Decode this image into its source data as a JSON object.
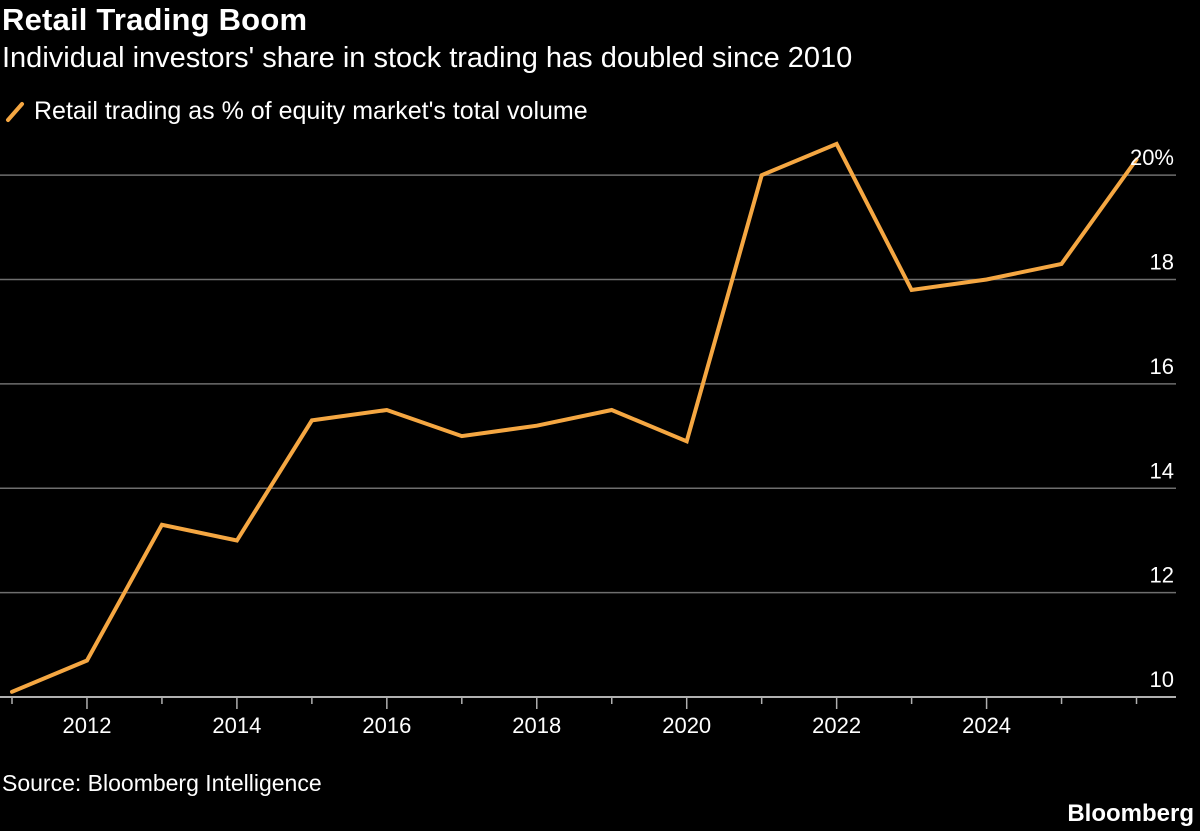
{
  "chart_data": {
    "type": "line",
    "title": "Retail Trading Boom",
    "subtitle": "Individual investors' share in stock trading has doubled since 2010",
    "series": [
      {
        "name": "Retail trading as % of equity market's total volume",
        "color": "#f5a742",
        "x": [
          2011,
          2012,
          2013,
          2014,
          2015,
          2016,
          2017,
          2018,
          2019,
          2020,
          2021,
          2022,
          2023,
          2024,
          2025,
          2026
        ],
        "values": [
          10.1,
          10.7,
          13.3,
          13.0,
          15.3,
          15.5,
          15.0,
          15.2,
          15.5,
          14.9,
          20.0,
          20.6,
          17.8,
          18.0,
          18.3,
          20.3
        ]
      }
    ],
    "xlim": [
      2011,
      2026.5
    ],
    "ylim": [
      10,
      21
    ],
    "y_ticks": [
      10,
      12,
      14,
      16,
      18,
      20
    ],
    "y_tick_labels": [
      "10",
      "12",
      "14",
      "16",
      "18",
      "20%"
    ],
    "x_ticks": [
      2012,
      2014,
      2016,
      2018,
      2020,
      2022,
      2024
    ],
    "x_tick_labels": [
      "2012",
      "2014",
      "2016",
      "2018",
      "2020",
      "2022",
      "2024"
    ],
    "y_axis_position": "right",
    "grid": true,
    "legend_placement": "top-left",
    "source": "Source: Bloomberg Intelligence",
    "brand": "Bloomberg"
  }
}
